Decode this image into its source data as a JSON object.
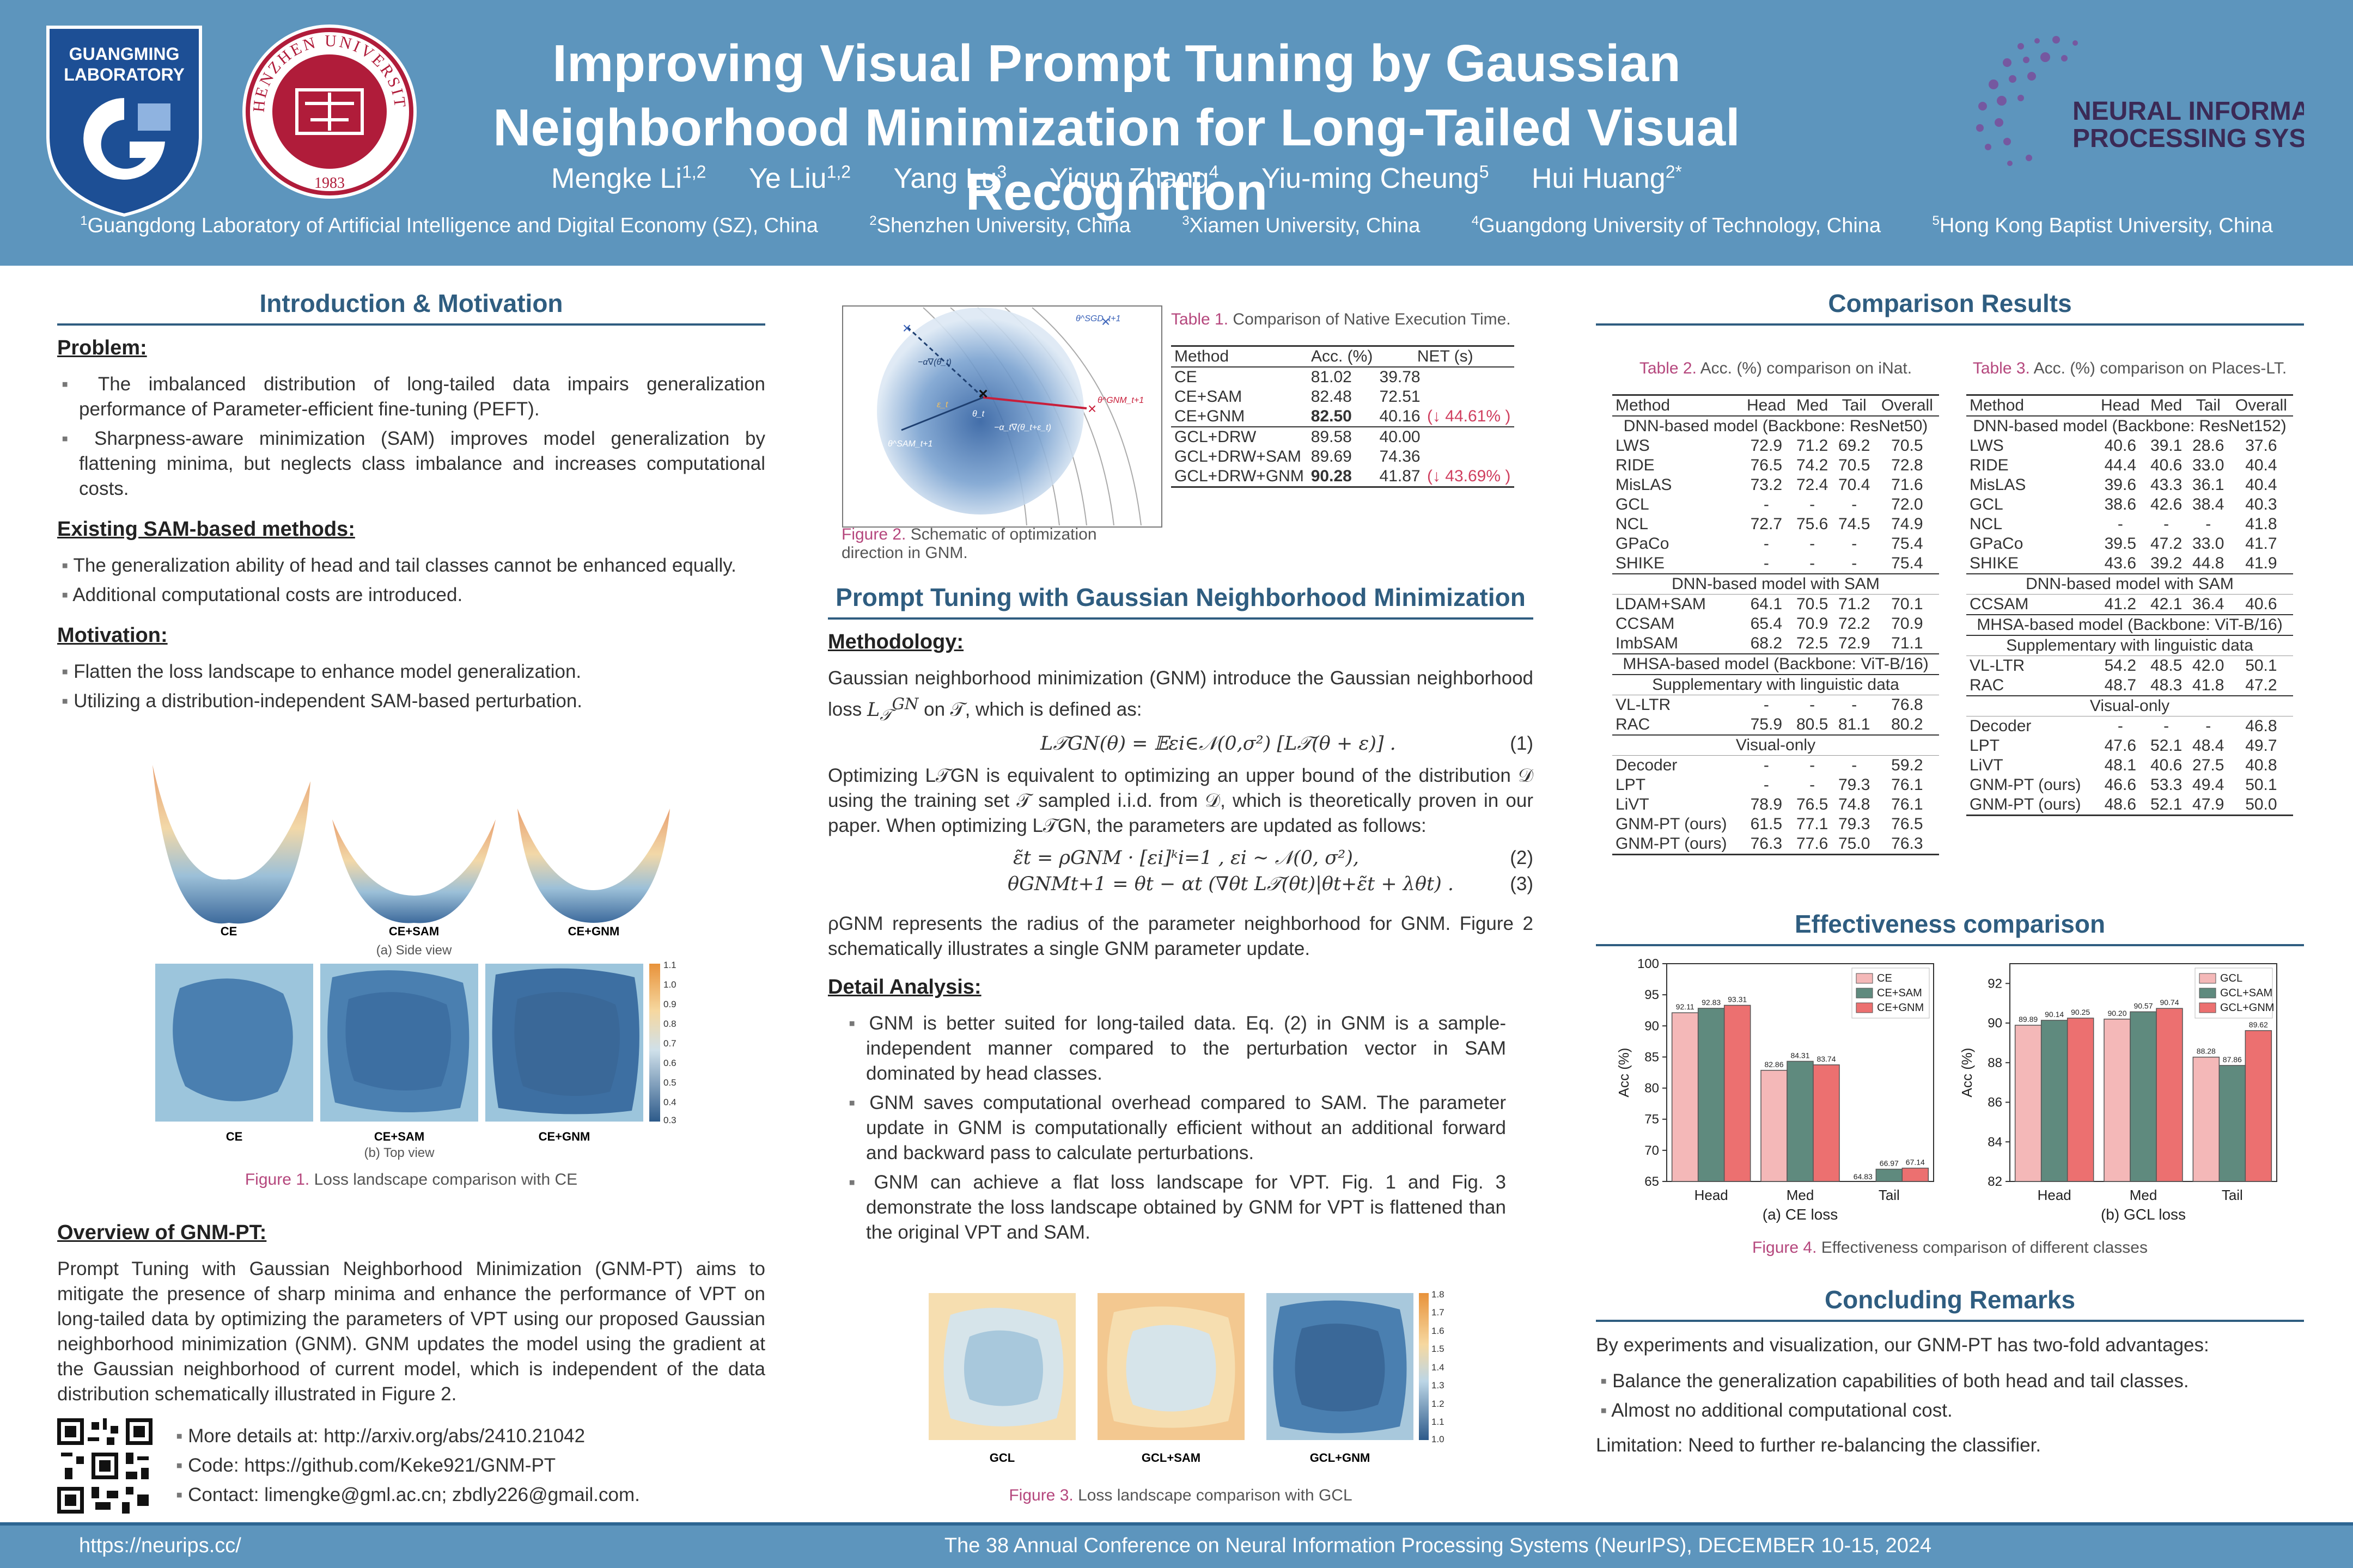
{
  "header": {
    "title": "Improving Visual Prompt Tuning by Gaussian Neighborhood Minimization for Long-Tailed Visual Recognition",
    "authors": [
      {
        "name": "Mengke Li",
        "sup": "1,2"
      },
      {
        "name": "Ye Liu",
        "sup": "1,2"
      },
      {
        "name": "Yang Lu",
        "sup": "3"
      },
      {
        "name": "Yiqun Zhang",
        "sup": "4"
      },
      {
        "name": "Yiu-ming Cheung",
        "sup": "5"
      },
      {
        "name": "Hui Huang",
        "sup": "2*"
      }
    ],
    "affiliations": [
      {
        "sup": "1",
        "text": "Guangdong Laboratory of Artificial Intelligence and Digital Economy (SZ), China"
      },
      {
        "sup": "2",
        "text": "Shenzhen University, China"
      },
      {
        "sup": "3",
        "text": "Xiamen University, China"
      },
      {
        "sup": "4",
        "text": "Guangdong University of Technology, China"
      },
      {
        "sup": "5",
        "text": "Hong Kong Baptist University, China"
      }
    ],
    "logos": {
      "gl_line1": "GUANGMING",
      "gl_line2": "LABORATORY",
      "szu_text": "SHENZHEN UNIVERSITY",
      "szu_year": "1983",
      "nips_line1": "NEURAL INFORMATION",
      "nips_line2": "PROCESSING SYSTEMS"
    }
  },
  "intro": {
    "title": "Introduction & Motivation",
    "problem_title": "Problem:",
    "problem": [
      "The imbalanced distribution of long-tailed data impairs generalization performance of Parameter-efficient fine-tuning (PEFT).",
      "Sharpness-aware minimization (SAM) improves model generalization by flattening minima, but neglects class imbalance and increases computational costs."
    ],
    "existing_title": "Existing SAM-based methods:",
    "existing": [
      "The generalization ability of head and tail classes cannot be enhanced equally.",
      "Additional computational costs are introduced."
    ],
    "motivation_title": "Motivation:",
    "motivation": [
      "Flatten the loss landscape to enhance model generalization.",
      "Utilizing a distribution-independent SAM-based perturbation."
    ],
    "fig1": {
      "labels": [
        "CE",
        "CE+SAM",
        "CE+GNM"
      ],
      "side": "(a) Side view",
      "top": "(b) Top view",
      "colorbar": [
        "1.1",
        "1.0",
        "0.9",
        "0.8",
        "0.7",
        "0.6",
        "0.5",
        "0.4",
        "0.3"
      ],
      "caption_num": "Figure 1.",
      "caption": "Loss landscape comparison with CE"
    },
    "overview_title": "Overview of GNM-PT:",
    "overview": "Prompt Tuning with Gaussian Neighborhood Minimization (GNM-PT) aims to mitigate the presence of sharp minima and enhance the performance of VPT on long-tailed data by optimizing the parameters of VPT using our proposed Gaussian neighborhood minimization (GNM). GNM updates the model using the gradient at the Gaussian neighborhood of current model, which is independent of the data distribution schematically illustrated in Figure 2.",
    "links": [
      "More details at: http://arxiv.org/abs/2410.21042",
      "Code: https://github.com/Keke921/GNM-PT",
      "Contact: limengke@gml.ac.cn; zbdly226@gmail.com."
    ]
  },
  "middle": {
    "fig2_caption_num": "Figure 2.",
    "fig2_caption": "Schematic of optimization direction in GNM.",
    "fig2_labels": {
      "sam": "θ^SAM_t+1",
      "gnm": "θ^GNM_t+1",
      "sgd": "θ^SGD_t+1",
      "theta": "θ_t",
      "eps": "ε_t",
      "g1": "−α∇(θ_t)",
      "g2": "−α_t∇(θ_t+ε_t)"
    },
    "table1": {
      "caption_num": "Table 1.",
      "caption": "Comparison of Native Execution Time.",
      "headers": [
        "Method",
        "Acc. (%)",
        "NET (s)"
      ],
      "groups": [
        [
          [
            "CE",
            "81.02",
            "39.78",
            ""
          ],
          [
            "CE+SAM",
            "82.48",
            "72.51",
            ""
          ],
          [
            "CE+GNM",
            "82.50",
            "40.16",
            "(↓ 44.61% )"
          ]
        ],
        [
          [
            "GCL+DRW",
            "89.58",
            "40.00",
            ""
          ],
          [
            "GCL+DRW+SAM",
            "89.69",
            "74.36",
            ""
          ],
          [
            "GCL+DRW+GNM",
            "90.28",
            "41.87",
            "(↓ 43.69% )"
          ]
        ]
      ]
    },
    "section_title": "Prompt Tuning with Gaussian Neighborhood Minimization",
    "method_title": "Methodology:",
    "method_p1a": "Gaussian neighborhood minimization (GNM) introduce the Gaussian neighborhood loss",
    "method_p1b": "on 𝒯, which is defined as:",
    "eq1": "L𝒯GN(θ) = 𝔼εi∈𝒩(0,σ²) [L𝒯(θ + ε)] .",
    "eq1_num": "(1)",
    "method_p2": "Optimizing L𝒯GN is equivalent to optimizing an upper bound of the distribution 𝒟 using the training set 𝒯 sampled i.i.d. from 𝒟, which is theoretically proven in our paper. When optimizing L𝒯GN, the parameters are updated as follows:",
    "eq2": "ε̃t = ρGNM · [εi]ᵏi=1 ,  εi ∼ 𝒩(0, σ²),",
    "eq2_num": "(2)",
    "eq3": "θGNMt+1 = θt − αt (∇θt L𝒯(θt)|θt+ε̃t + λθt) .",
    "eq3_num": "(3)",
    "method_p3": "ρGNM represents the radius of the parameter neighborhood for GNM. Figure 2 schematically illustrates a single GNM parameter update.",
    "detail_title": "Detail Analysis:",
    "detail": [
      "GNM is better suited for long-tailed data. Eq. (2) in GNM is a sample-independent manner compared to the perturbation vector in SAM dominated by head classes.",
      "GNM saves computational overhead compared to SAM. The parameter update in GNM is computationally efficient without an additional forward and backward pass to calculate perturbations.",
      "GNM can achieve a flat loss landscape for VPT. Fig. 1 and Fig. 3 demonstrate the loss landscape obtained by GNM for VPT is flattened than the original VPT and SAM."
    ],
    "fig3": {
      "labels": [
        "GCL",
        "GCL+SAM",
        "GCL+GNM"
      ],
      "colorbar": [
        "1.8",
        "1.7",
        "1.6",
        "1.5",
        "1.4",
        "1.3",
        "1.2",
        "1.1",
        "1.0"
      ],
      "caption_num": "Figure 3.",
      "caption": "Loss landscape comparison with GCL"
    }
  },
  "right": {
    "title": "Comparison Results",
    "table2": {
      "caption_num": "Table 2.",
      "caption": "Acc. (%) comparison on iNat.",
      "headers": [
        "Method",
        "Head",
        "Med",
        "Tail",
        "Overall"
      ],
      "sections": [
        {
          "label": "DNN-based model (Backbone: ResNet50)",
          "rows": [
            [
              "LWS",
              "72.9",
              "71.2",
              "69.2",
              "70.5"
            ],
            [
              "RIDE",
              "76.5",
              "74.2",
              "70.5",
              "72.8"
            ],
            [
              "MisLAS",
              "73.2",
              "72.4",
              "70.4",
              "71.6"
            ],
            [
              "GCL",
              "-",
              "-",
              "-",
              "72.0"
            ],
            [
              "NCL",
              "72.7",
              "75.6",
              "74.5",
              "74.9"
            ],
            [
              "GPaCo",
              "-",
              "-",
              "-",
              "75.4"
            ],
            [
              "SHIKE",
              "-",
              "-",
              "-",
              "75.4"
            ]
          ]
        },
        {
          "label": "DNN-based model with SAM",
          "rows": [
            [
              "LDAM+SAM",
              "64.1",
              "70.5",
              "71.2",
              "70.1"
            ],
            [
              "CCSAM",
              "65.4",
              "70.9",
              "72.2",
              "70.9"
            ],
            [
              "ImbSAM",
              "68.2",
              "72.5",
              "72.9",
              "71.1"
            ]
          ]
        },
        {
          "label": "MHSA-based model (Backbone: ViT-B/16)",
          "rows": []
        },
        {
          "label": "Supplementary with linguistic data",
          "rows": [
            [
              "VL-LTR",
              "-",
              "-",
              "-",
              "76.8"
            ],
            [
              "RAC",
              "75.9",
              "80.5",
              "81.1",
              "80.2"
            ]
          ]
        },
        {
          "label": "Visual-only",
          "rows": [
            [
              "Decoder",
              "-",
              "-",
              "-",
              "59.2"
            ],
            [
              "LPT",
              "-",
              "-",
              "79.3",
              "76.1"
            ],
            [
              "LiVT",
              "78.9",
              "76.5",
              "74.8",
              "76.1"
            ],
            [
              "GNM-PT (ours)",
              "61.5",
              "77.1",
              "79.3",
              "76.5"
            ],
            [
              "GNM-PT (ours)",
              "76.3",
              "77.6",
              "75.0",
              "76.3"
            ]
          ]
        }
      ]
    },
    "table3": {
      "caption_num": "Table 3.",
      "caption": "Acc. (%) comparison on Places-LT.",
      "headers": [
        "Method",
        "Head",
        "Med",
        "Tail",
        "Overall"
      ],
      "sections": [
        {
          "label": "DNN-based model (Backbone: ResNet152)",
          "rows": [
            [
              "LWS",
              "40.6",
              "39.1",
              "28.6",
              "37.6"
            ],
            [
              "RIDE",
              "44.4",
              "40.6",
              "33.0",
              "40.4"
            ],
            [
              "MisLAS",
              "39.6",
              "43.3",
              "36.1",
              "40.4"
            ],
            [
              "GCL",
              "38.6",
              "42.6",
              "38.4",
              "40.3"
            ],
            [
              "NCL",
              "-",
              "-",
              "-",
              "41.8"
            ],
            [
              "GPaCo",
              "39.5",
              "47.2",
              "33.0",
              "41.7"
            ],
            [
              "SHIKE",
              "43.6",
              "39.2",
              "44.8",
              "41.9"
            ]
          ]
        },
        {
          "label": "DNN-based model with SAM",
          "rows": [
            [
              "CCSAM",
              "41.2",
              "42.1",
              "36.4",
              "40.6"
            ]
          ]
        },
        {
          "label": "MHSA-based model (Backbone: ViT-B/16)",
          "rows": []
        },
        {
          "label": "Supplementary with linguistic data",
          "rows": [
            [
              "VL-LTR",
              "54.2",
              "48.5",
              "42.0",
              "50.1"
            ],
            [
              "RAC",
              "48.7",
              "48.3",
              "41.8",
              "47.2"
            ]
          ]
        },
        {
          "label": "Visual-only",
          "rows": [
            [
              "Decoder",
              "-",
              "-",
              "-",
              "46.8"
            ],
            [
              "LPT",
              "47.6",
              "52.1",
              "48.4",
              "49.7"
            ],
            [
              "LiVT",
              "48.1",
              "40.6",
              "27.5",
              "40.8"
            ],
            [
              "GNM-PT (ours)",
              "46.6",
              "53.3",
              "49.4",
              "50.1"
            ],
            [
              "GNM-PT (ours)",
              "48.6",
              "52.1",
              "47.9",
              "50.0"
            ]
          ]
        }
      ]
    },
    "eff_title": "Effectiveness comparison",
    "fig4_caption_num": "Figure 4.",
    "fig4_caption": "Effectiveness comparison of different classes",
    "concl_title": "Concluding Remarks",
    "concl_intro": "By experiments and visualization, our GNM-PT has two-fold advantages:",
    "concl": [
      "Balance the generalization capabilities of both head and tail classes.",
      "Almost no additional computational cost."
    ],
    "limitation": "Limitation: Need to further re-balancing the classifier."
  },
  "chart_data": [
    {
      "type": "bar",
      "title": "(a) CE loss",
      "ylabel": "Acc (%)",
      "categories": [
        "Head",
        "Med",
        "Tail"
      ],
      "ylim": [
        65,
        100
      ],
      "yticks": [
        65,
        70,
        75,
        80,
        85,
        90,
        95,
        100
      ],
      "legend": "top-right",
      "series": [
        {
          "name": "CE",
          "color": "#f4b8b8",
          "values": [
            92.11,
            82.86,
            64.83
          ]
        },
        {
          "name": "CE+SAM",
          "color": "#5f8a7e",
          "values": [
            92.83,
            84.31,
            66.97
          ]
        },
        {
          "name": "CE+GNM",
          "color": "#ec7070",
          "values": [
            93.31,
            83.74,
            67.14
          ]
        }
      ],
      "labels": [
        [
          "92.11",
          "82.86",
          "64.83"
        ],
        [
          "92.83",
          "84.31",
          "66.97"
        ],
        [
          "93.31",
          "83.74",
          "67.14"
        ]
      ]
    },
    {
      "type": "bar",
      "title": "(b) GCL loss",
      "ylabel": "Acc (%)",
      "categories": [
        "Head",
        "Med",
        "Tail"
      ],
      "ylim": [
        82,
        93
      ],
      "yticks": [
        82,
        84,
        86,
        88,
        90,
        92
      ],
      "legend": "top-right",
      "series": [
        {
          "name": "GCL",
          "color": "#f4b8b8",
          "values": [
            89.89,
            90.2,
            88.28
          ]
        },
        {
          "name": "GCL+SAM",
          "color": "#5f8a7e",
          "values": [
            90.14,
            90.57,
            87.86
          ]
        },
        {
          "name": "GCL+GNM",
          "color": "#ec7070",
          "values": [
            90.25,
            90.74,
            89.62
          ]
        }
      ],
      "labels": [
        [
          "89.89",
          "90.20",
          "88.28"
        ],
        [
          "90.14",
          "90.57",
          "87.86"
        ],
        [
          "90.25",
          "90.74",
          "89.62"
        ]
      ]
    }
  ],
  "footer": {
    "left": "https://neurips.cc/",
    "right": "The 38 Annual Conference on Neural Information Processing Systems (NeurIPS), DECEMBER 10-15, 2024"
  }
}
